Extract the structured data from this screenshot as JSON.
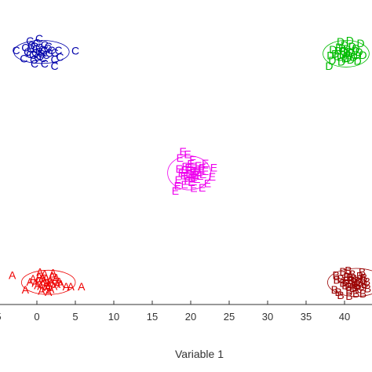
{
  "chart_data": {
    "type": "scatter",
    "title": "",
    "xlabel": "Variable 1",
    "ylabel": "",
    "xlim": [
      -5,
      43
    ],
    "ylim": [
      -10,
      45
    ],
    "x_ticks": [
      "5",
      "0",
      "5",
      "10",
      "15",
      "20",
      "25",
      "30",
      "35",
      "40"
    ],
    "grid": false,
    "legend": "none",
    "series": [
      {
        "name": "A",
        "color": "#ee0000",
        "center": [
          1.5,
          0.8
        ],
        "ellipse_radius": [
          3.5,
          2.0
        ],
        "points": [
          [
            0.2,
            1.1
          ],
          [
            0.8,
            0.6
          ],
          [
            1.2,
            1.5
          ],
          [
            1.9,
            0.9
          ],
          [
            2.4,
            1.3
          ],
          [
            0.5,
            0.2
          ],
          [
            1.1,
            -0.1
          ],
          [
            1.6,
            0.4
          ],
          [
            2.0,
            1.9
          ],
          [
            2.6,
            0.5
          ],
          [
            -0.2,
            0.7
          ],
          [
            0.3,
            1.8
          ],
          [
            0.9,
            1.2
          ],
          [
            1.4,
            0.0
          ],
          [
            1.8,
            -0.3
          ],
          [
            2.2,
            0.2
          ],
          [
            0.6,
            -0.6
          ],
          [
            1.0,
            2.2
          ],
          [
            1.7,
            1.1
          ],
          [
            2.9,
            1.0
          ],
          [
            -0.5,
            1.4
          ],
          [
            0.1,
            0.3
          ],
          [
            0.7,
            1.6
          ],
          [
            1.3,
            0.8
          ],
          [
            2.5,
            1.6
          ],
          [
            -1.5,
            -0.4
          ],
          [
            3.8,
            0.1
          ],
          [
            4.4,
            0.1
          ],
          [
            5.8,
            0.1
          ],
          [
            -3.2,
            2.0
          ],
          [
            0.4,
            2.5
          ],
          [
            2.1,
            2.4
          ],
          [
            3.1,
            0.6
          ],
          [
            1.5,
            -0.8
          ],
          [
            -0.9,
            0.9
          ]
        ]
      },
      {
        "name": "B",
        "color": "#990000",
        "center": [
          41.5,
          0.8
        ],
        "ellipse_radius": [
          3.7,
          2.3
        ],
        "points": [
          [
            40.2,
            1.1
          ],
          [
            40.8,
            0.6
          ],
          [
            41.2,
            1.5
          ],
          [
            41.9,
            0.9
          ],
          [
            42.4,
            1.3
          ],
          [
            40.5,
            0.2
          ],
          [
            41.1,
            -0.1
          ],
          [
            41.6,
            0.4
          ],
          [
            42.0,
            1.9
          ],
          [
            42.6,
            0.5
          ],
          [
            39.8,
            0.7
          ],
          [
            40.3,
            1.8
          ],
          [
            40.9,
            1.2
          ],
          [
            41.4,
            0.0
          ],
          [
            41.8,
            -0.3
          ],
          [
            42.2,
            0.2
          ],
          [
            40.6,
            -0.6
          ],
          [
            41.0,
            2.2
          ],
          [
            41.7,
            1.1
          ],
          [
            42.9,
            1.0
          ],
          [
            39.5,
            1.4
          ],
          [
            40.1,
            0.3
          ],
          [
            40.7,
            1.6
          ],
          [
            41.3,
            0.8
          ],
          [
            42.5,
            1.6
          ],
          [
            39.2,
            -0.8
          ],
          [
            39.0,
            1.2
          ],
          [
            38.7,
            -0.4
          ],
          [
            38.9,
            2.0
          ],
          [
            39.8,
            2.6
          ],
          [
            40.5,
            2.8
          ],
          [
            42.3,
            2.5
          ],
          [
            43.0,
            -0.2
          ],
          [
            39.5,
            -1.3
          ],
          [
            40.6,
            -1.4
          ],
          [
            41.5,
            -1.0
          ],
          [
            42.4,
            -1.0
          ]
        ]
      },
      {
        "name": "C",
        "color": "#0000aa",
        "center": [
          0.6,
          38.7
        ],
        "ellipse_radius": [
          3.6,
          1.9
        ],
        "points": [
          [
            -0.8,
            39.2
          ],
          [
            -0.2,
            38.6
          ],
          [
            0.3,
            39.5
          ],
          [
            0.9,
            38.9
          ],
          [
            1.4,
            39.3
          ],
          [
            -0.5,
            38.2
          ],
          [
            0.1,
            37.9
          ],
          [
            0.6,
            38.4
          ],
          [
            1.0,
            39.9
          ],
          [
            1.6,
            38.5
          ],
          [
            -1.2,
            38.7
          ],
          [
            -0.7,
            39.8
          ],
          [
            -0.1,
            39.2
          ],
          [
            0.4,
            38.0
          ],
          [
            0.8,
            37.7
          ],
          [
            1.2,
            38.2
          ],
          [
            -0.4,
            37.4
          ],
          [
            0.0,
            40.2
          ],
          [
            0.7,
            39.1
          ],
          [
            1.9,
            39.0
          ],
          [
            -1.5,
            39.4
          ],
          [
            -0.9,
            38.3
          ],
          [
            -0.3,
            39.6
          ],
          [
            0.3,
            38.8
          ],
          [
            1.5,
            39.6
          ],
          [
            -2.7,
            39.0
          ],
          [
            -1.7,
            37.6
          ],
          [
            -0.9,
            40.5
          ],
          [
            0.3,
            40.9
          ],
          [
            2.3,
            38.6
          ],
          [
            2.8,
            39.0
          ],
          [
            3.0,
            37.9
          ],
          [
            5.0,
            38.9
          ],
          [
            2.3,
            37.5
          ],
          [
            2.3,
            36.4
          ],
          [
            1.0,
            36.8
          ],
          [
            -0.3,
            36.8
          ]
        ]
      },
      {
        "name": "D",
        "color": "#00bb00",
        "center": [
          40.2,
          38.4
        ],
        "ellipse_radius": [
          3.0,
          2.2
        ],
        "points": [
          [
            39.2,
            38.9
          ],
          [
            39.8,
            38.3
          ],
          [
            40.3,
            39.2
          ],
          [
            40.9,
            38.6
          ],
          [
            41.4,
            39.0
          ],
          [
            39.5,
            37.9
          ],
          [
            40.1,
            37.6
          ],
          [
            40.6,
            38.1
          ],
          [
            41.0,
            39.6
          ],
          [
            41.6,
            38.2
          ],
          [
            38.8,
            38.4
          ],
          [
            39.3,
            39.5
          ],
          [
            39.9,
            38.9
          ],
          [
            40.4,
            37.7
          ],
          [
            40.8,
            37.4
          ],
          [
            41.2,
            37.9
          ],
          [
            39.6,
            37.1
          ],
          [
            40.0,
            39.9
          ],
          [
            40.7,
            38.8
          ],
          [
            41.9,
            38.7
          ],
          [
            38.5,
            39.1
          ],
          [
            39.1,
            38.0
          ],
          [
            39.7,
            39.3
          ],
          [
            40.3,
            38.5
          ],
          [
            41.5,
            39.3
          ],
          [
            38.4,
            37.3
          ],
          [
            38.0,
            36.4
          ],
          [
            38.2,
            38.1
          ],
          [
            39.5,
            40.4
          ],
          [
            40.7,
            40.6
          ],
          [
            42.1,
            40.1
          ],
          [
            42.4,
            38.2
          ],
          [
            41.7,
            37.2
          ]
        ]
      },
      {
        "name": "E",
        "color": "#ee00ee",
        "center": [
          19.8,
          18.8
        ],
        "ellipse_radius": [
          2.8,
          2.8
        ],
        "points": [
          [
            19.2,
            19.3
          ],
          [
            19.8,
            18.7
          ],
          [
            20.3,
            19.6
          ],
          [
            20.9,
            19.0
          ],
          [
            21.4,
            19.4
          ],
          [
            19.5,
            18.3
          ],
          [
            20.1,
            18.0
          ],
          [
            20.6,
            18.5
          ],
          [
            21.0,
            20.0
          ],
          [
            21.6,
            18.6
          ],
          [
            18.8,
            18.8
          ],
          [
            19.3,
            19.9
          ],
          [
            19.9,
            19.3
          ],
          [
            20.4,
            18.1
          ],
          [
            20.8,
            17.8
          ],
          [
            21.2,
            18.3
          ],
          [
            19.6,
            17.5
          ],
          [
            20.0,
            20.3
          ],
          [
            20.7,
            19.2
          ],
          [
            21.9,
            19.1
          ],
          [
            18.5,
            19.5
          ],
          [
            19.1,
            18.4
          ],
          [
            19.7,
            19.7
          ],
          [
            20.3,
            18.9
          ],
          [
            21.5,
            19.7
          ],
          [
            18.4,
            17.7
          ],
          [
            18.6,
            21.3
          ],
          [
            19.6,
            21.9
          ],
          [
            19.0,
            22.3
          ],
          [
            20.3,
            21.0
          ],
          [
            22.8,
            18.2
          ],
          [
            23.0,
            19.7
          ],
          [
            22.2,
            17.1
          ],
          [
            21.5,
            16.4
          ],
          [
            20.4,
            16.3
          ],
          [
            19.2,
            16.9
          ],
          [
            18.3,
            16.7
          ],
          [
            18.0,
            15.9
          ],
          [
            20.1,
            17.3
          ],
          [
            21.9,
            20.4
          ]
        ]
      }
    ]
  }
}
